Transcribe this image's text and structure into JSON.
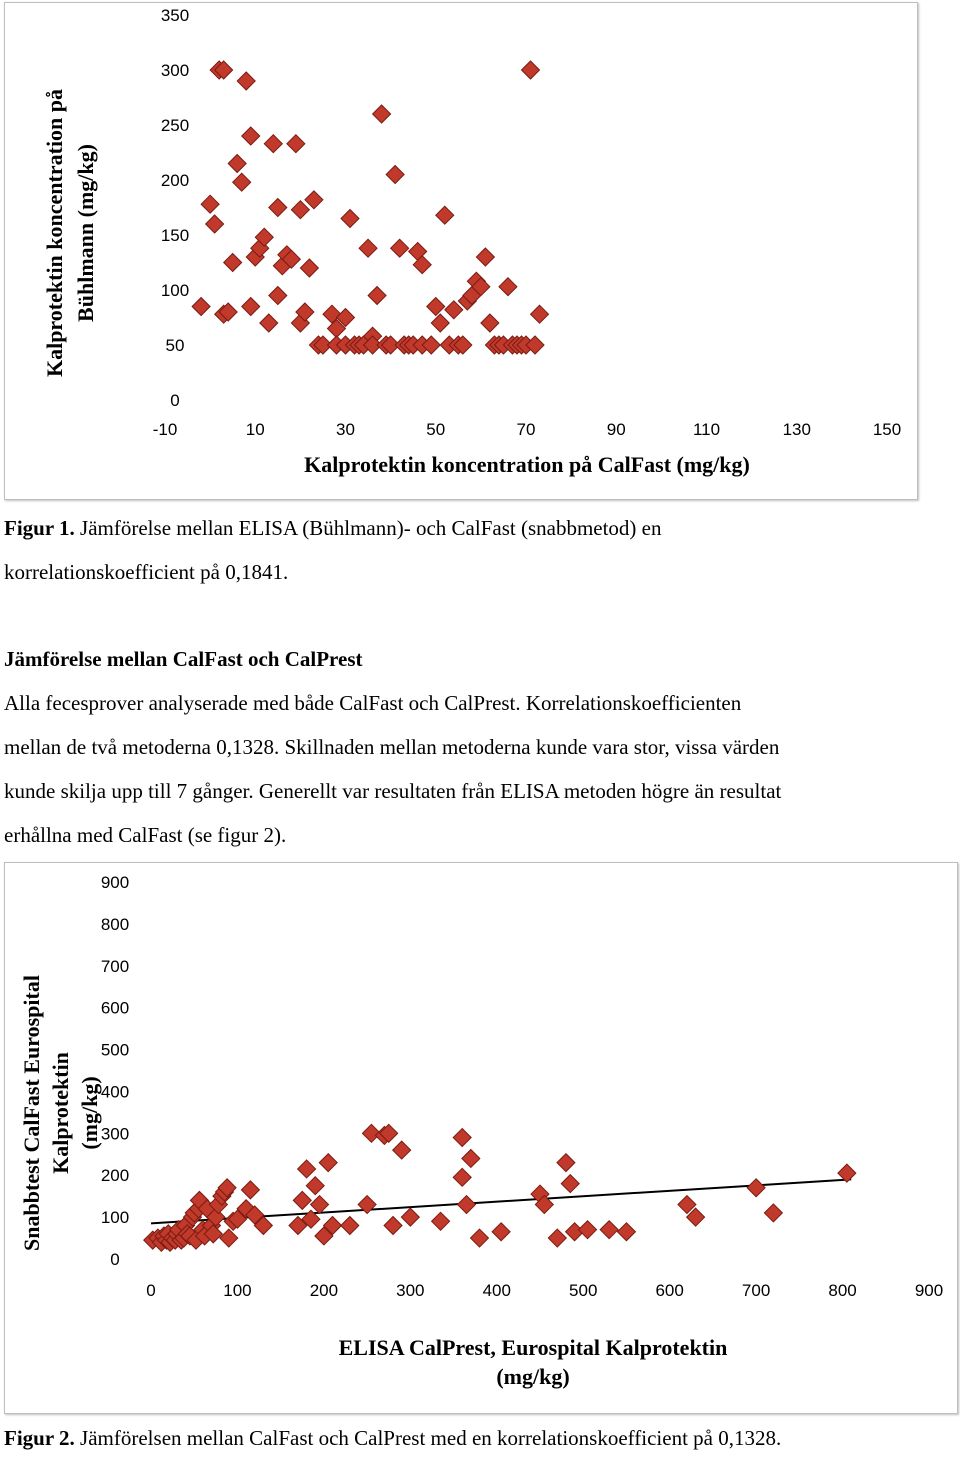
{
  "figure1": {
    "caption_label": "Figur 1.",
    "caption_text": " Jämförelse mellan ELISA (Bühlmann)- och CalFast (snabbmetod) en",
    "caption_text2": "korrelationskoefficient på 0,1841."
  },
  "section": {
    "heading": "Jämförelse mellan CalFast och CalPrest",
    "lines": [
      "Alla fecesprover analyserade med både CalFast och CalPrest. Korrelationskoefficienten",
      "mellan de två metoderna 0,1328. Skillnaden mellan metoderna kunde vara  stor, vissa värden",
      "kunde skilja upp till 7 gånger. Generellt var resultaten från ELISA metoden högre än resultat",
      "erhållna med CalFast (se figur 2)."
    ]
  },
  "figure2": {
    "caption_label": "Figur 2.",
    "caption_text": " Jämförelsen mellan CalFast och CalPrest med en korrelationskoefficient på 0,1328."
  },
  "colors": {
    "marker": "#c0392b",
    "marker_edge": "#7a1b12",
    "trend": "#000000"
  },
  "chart_data": [
    {
      "type": "scatter",
      "marker": "diamond",
      "xlabel": "Kalprotektin koncentration på CalFast (mg/kg)",
      "ylabel": [
        "Kalprotektin koncentration på",
        "Bühlmann (mg/kg)"
      ],
      "xlim": [
        -10,
        150
      ],
      "ylim": [
        0,
        350
      ],
      "xticks": [
        -10,
        10,
        30,
        50,
        70,
        90,
        110,
        130,
        150
      ],
      "yticks": [
        0,
        50,
        100,
        150,
        200,
        250,
        300,
        350
      ],
      "grid": false,
      "points": [
        [
          -2,
          85
        ],
        [
          0,
          178
        ],
        [
          1,
          160
        ],
        [
          2,
          300
        ],
        [
          3,
          300
        ],
        [
          3,
          78
        ],
        [
          4,
          80
        ],
        [
          5,
          125
        ],
        [
          6,
          215
        ],
        [
          7,
          198
        ],
        [
          8,
          290
        ],
        [
          9,
          240
        ],
        [
          9,
          85
        ],
        [
          10,
          130
        ],
        [
          11,
          138
        ],
        [
          12,
          148
        ],
        [
          13,
          70
        ],
        [
          14,
          233
        ],
        [
          15,
          175
        ],
        [
          15,
          95
        ],
        [
          16,
          122
        ],
        [
          17,
          132
        ],
        [
          18,
          128
        ],
        [
          19,
          233
        ],
        [
          20,
          173
        ],
        [
          20,
          70
        ],
        [
          21,
          80
        ],
        [
          22,
          120
        ],
        [
          23,
          182
        ],
        [
          24,
          50
        ],
        [
          25,
          50
        ],
        [
          27,
          78
        ],
        [
          28,
          65
        ],
        [
          28,
          50
        ],
        [
          30,
          75
        ],
        [
          30,
          50
        ],
        [
          31,
          165
        ],
        [
          32,
          50
        ],
        [
          33,
          50
        ],
        [
          34,
          50
        ],
        [
          35,
          138
        ],
        [
          36,
          58
        ],
        [
          36,
          50
        ],
        [
          37,
          95
        ],
        [
          38,
          260
        ],
        [
          39,
          50
        ],
        [
          40,
          50
        ],
        [
          41,
          205
        ],
        [
          42,
          138
        ],
        [
          43,
          50
        ],
        [
          44,
          50
        ],
        [
          45,
          50
        ],
        [
          46,
          135
        ],
        [
          47,
          123
        ],
        [
          47,
          50
        ],
        [
          49,
          50
        ],
        [
          50,
          85
        ],
        [
          51,
          70
        ],
        [
          52,
          168
        ],
        [
          53,
          50
        ],
        [
          54,
          82
        ],
        [
          55,
          50
        ],
        [
          56,
          50
        ],
        [
          57,
          90
        ],
        [
          58,
          95
        ],
        [
          59,
          108
        ],
        [
          60,
          103
        ],
        [
          61,
          130
        ],
        [
          62,
          70
        ],
        [
          63,
          50
        ],
        [
          64,
          50
        ],
        [
          65,
          50
        ],
        [
          66,
          103
        ],
        [
          67,
          50
        ],
        [
          68,
          50
        ],
        [
          69,
          50
        ],
        [
          70,
          50
        ],
        [
          71,
          300
        ],
        [
          72,
          50
        ],
        [
          73,
          78
        ]
      ]
    },
    {
      "type": "scatter",
      "marker": "diamond",
      "trendline": "linear",
      "xlabel": [
        "ELISA CalPrest, Eurospital Kalprotektin",
        "(mg/kg)"
      ],
      "ylabel": [
        "Snabbtest CalFast Eurospital",
        "Kalprotektin",
        "(mg/kg)"
      ],
      "xlim": [
        0,
        900
      ],
      "ylim": [
        0,
        900
      ],
      "xticks": [
        0,
        100,
        200,
        300,
        400,
        500,
        600,
        700,
        800,
        900
      ],
      "yticks": [
        0,
        100,
        200,
        300,
        400,
        500,
        600,
        700,
        800,
        900
      ],
      "grid": false,
      "trend": {
        "x0": 0,
        "y0": 85,
        "x1": 810,
        "y1": 190
      },
      "points": [
        [
          2,
          45
        ],
        [
          8,
          50
        ],
        [
          12,
          40
        ],
        [
          15,
          55
        ],
        [
          18,
          45
        ],
        [
          20,
          60
        ],
        [
          22,
          40
        ],
        [
          25,
          50
        ],
        [
          28,
          45
        ],
        [
          30,
          60
        ],
        [
          32,
          70
        ],
        [
          35,
          45
        ],
        [
          38,
          50
        ],
        [
          40,
          80
        ],
        [
          42,
          60
        ],
        [
          45,
          55
        ],
        [
          48,
          100
        ],
        [
          50,
          110
        ],
        [
          52,
          45
        ],
        [
          55,
          120
        ],
        [
          56,
          140
        ],
        [
          60,
          70
        ],
        [
          62,
          55
        ],
        [
          65,
          120
        ],
        [
          70,
          80
        ],
        [
          72,
          60
        ],
        [
          75,
          100
        ],
        [
          78,
          130
        ],
        [
          82,
          150
        ],
        [
          85,
          160
        ],
        [
          88,
          170
        ],
        [
          90,
          50
        ],
        [
          95,
          90
        ],
        [
          100,
          95
        ],
        [
          110,
          120
        ],
        [
          115,
          165
        ],
        [
          120,
          105
        ],
        [
          130,
          80
        ],
        [
          170,
          80
        ],
        [
          175,
          140
        ],
        [
          180,
          215
        ],
        [
          185,
          95
        ],
        [
          190,
          175
        ],
        [
          195,
          130
        ],
        [
          200,
          55
        ],
        [
          205,
          230
        ],
        [
          210,
          80
        ],
        [
          230,
          80
        ],
        [
          250,
          130
        ],
        [
          255,
          300
        ],
        [
          270,
          295
        ],
        [
          275,
          300
        ],
        [
          280,
          80
        ],
        [
          290,
          260
        ],
        [
          300,
          100
        ],
        [
          335,
          90
        ],
        [
          360,
          290
        ],
        [
          360,
          195
        ],
        [
          365,
          130
        ],
        [
          370,
          240
        ],
        [
          380,
          50
        ],
        [
          405,
          65
        ],
        [
          450,
          155
        ],
        [
          455,
          130
        ],
        [
          470,
          50
        ],
        [
          480,
          230
        ],
        [
          485,
          180
        ],
        [
          490,
          65
        ],
        [
          505,
          70
        ],
        [
          530,
          70
        ],
        [
          550,
          65
        ],
        [
          620,
          130
        ],
        [
          630,
          100
        ],
        [
          700,
          170
        ],
        [
          720,
          110
        ],
        [
          805,
          205
        ]
      ]
    }
  ]
}
